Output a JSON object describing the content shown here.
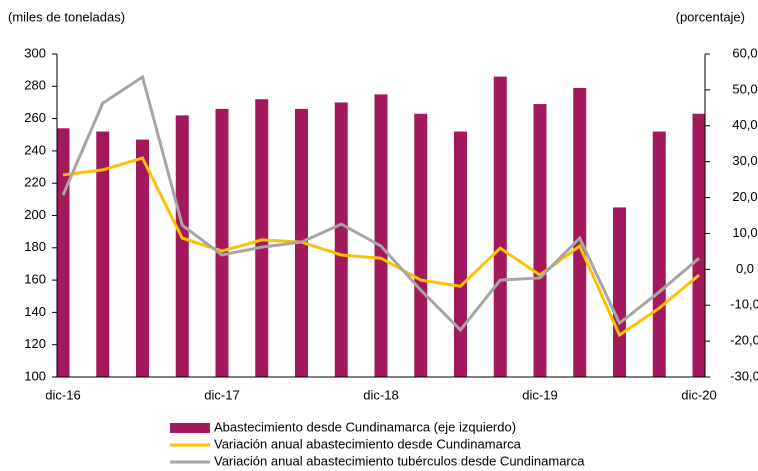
{
  "chart_data": {
    "type": "bar-line",
    "y_label": "(miles de toneladas)",
    "y2_label": "(porcentaje)",
    "categories": [
      "dic-16",
      null,
      null,
      null,
      "dic-17",
      null,
      null,
      null,
      "dic-18",
      null,
      null,
      null,
      "dic-19",
      null,
      null,
      null,
      "dic-20"
    ],
    "series": [
      {
        "name": "Abastecimiento desde Cundinamarca (eje izquierdo)",
        "type": "bar",
        "color": "#a3195b",
        "axis": "y",
        "values": [
          254,
          252,
          247,
          262,
          266,
          272,
          266,
          270,
          275,
          263,
          252,
          286,
          269,
          279,
          205,
          252,
          263
        ]
      },
      {
        "name": "Variación anual abastecimiento desde Cundinamarca",
        "type": "line",
        "color": "#ffc000",
        "axis": "y2",
        "values": [
          26.3,
          27.7,
          31.0,
          8.7,
          5.1,
          8.2,
          7.6,
          4.0,
          3.1,
          -3.0,
          -4.7,
          5.9,
          -1.6,
          6.5,
          -18.3,
          -10.8,
          -1.6
        ]
      },
      {
        "name": "Variación anual abastecimiento tubérculos desde Cundinamarca",
        "type": "line",
        "color": "#a6a6a6",
        "axis": "y2",
        "values": [
          20.7,
          46.3,
          53.6,
          12.3,
          4.0,
          6.2,
          7.6,
          12.6,
          6.5,
          -5.8,
          -16.9,
          -3.0,
          -2.4,
          8.7,
          -15.0,
          -6.3,
          3.1
        ]
      }
    ],
    "ylim": [
      100,
      300
    ],
    "yticks": [
      100,
      120,
      140,
      160,
      180,
      200,
      220,
      240,
      260,
      280,
      300
    ],
    "y2lim": [
      -30,
      60
    ],
    "y2ticks": [
      {
        "value": -30,
        "label": "-30,0"
      },
      {
        "value": -20,
        "label": "-20,0"
      },
      {
        "value": -10,
        "label": "-10,0"
      },
      {
        "value": 0,
        "label": "0,0"
      },
      {
        "value": 10,
        "label": "10,0"
      },
      {
        "value": 20,
        "label": "20,0"
      },
      {
        "value": 30,
        "label": "30,0"
      },
      {
        "value": 40,
        "label": "40,0"
      },
      {
        "value": 50,
        "label": "50,0"
      },
      {
        "value": 60,
        "label": "60,0"
      }
    ],
    "grid": false,
    "legend": "bottom"
  }
}
